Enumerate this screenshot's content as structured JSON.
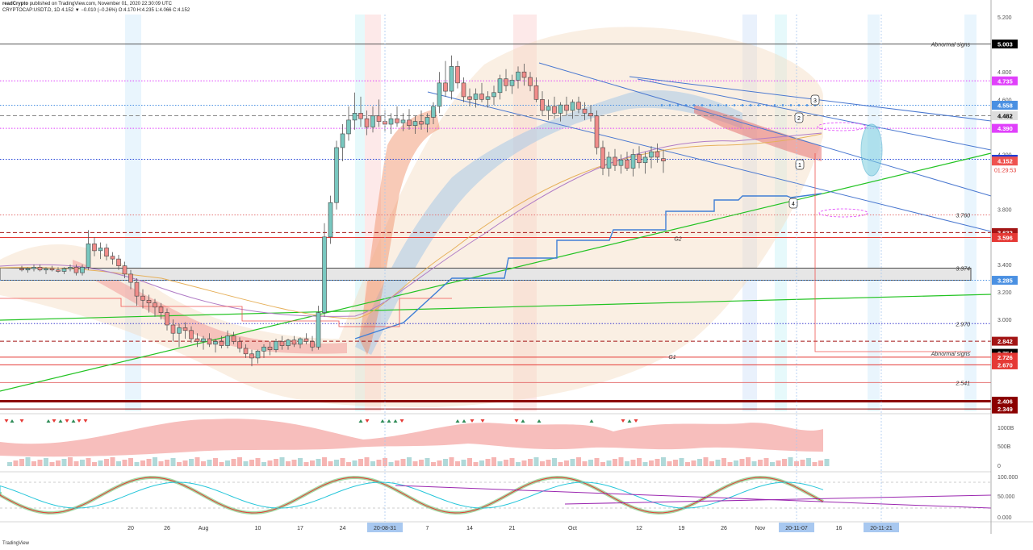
{
  "header": {
    "author": "readCrypto",
    "published": "published on TradingView.com, November 01, 2020 22:30:09 UTC",
    "symbol_line": "CRYPTOCAP:USDT.D, 1D  4.152 ▼ −0.010 (−0.26%)  O:4.170  H:4.235  L:4.066  C:4.152"
  },
  "branding": {
    "logo": "TradingView"
  },
  "chart_data": {
    "type": "candlestick",
    "symbol": "CRYPTOCAP:USDT.D",
    "interval": "1D",
    "last_bar": {
      "open": 4.17,
      "high": 4.235,
      "low": 4.066,
      "close": 4.152,
      "change": -0.01,
      "change_pct": -0.26
    },
    "countdown": "01:29:53",
    "ylim": [
      2.349,
      5.2
    ],
    "y_ticks": [
      5.2,
      4.8,
      4.6,
      4.2,
      3.8,
      3.4,
      3.2,
      3.0
    ],
    "x_tick_labels": [
      {
        "day": 20,
        "label": "20"
      },
      {
        "day": 26,
        "label": "26"
      },
      {
        "day": 32,
        "label": "Aug"
      },
      {
        "day": 41,
        "label": "10"
      },
      {
        "day": 48,
        "label": "17"
      },
      {
        "day": 55,
        "label": "24"
      },
      {
        "day": 62,
        "label": "20-08-31",
        "highlight": true
      },
      {
        "day": 69,
        "label": "7"
      },
      {
        "day": 76,
        "label": "14"
      },
      {
        "day": 83,
        "label": "21"
      },
      {
        "day": 93,
        "label": "Oct"
      },
      {
        "day": 104,
        "label": "12"
      },
      {
        "day": 111,
        "label": "19"
      },
      {
        "day": 118,
        "label": "26"
      },
      {
        "day": 124,
        "label": "Nov"
      },
      {
        "day": 130,
        "label": "20-11-07",
        "highlight": true
      },
      {
        "day": 137,
        "label": "16"
      },
      {
        "day": 144,
        "label": "20-11-21",
        "highlight": true
      }
    ],
    "candles": [
      [
        3.37,
        3.39,
        3.35,
        3.36
      ],
      [
        3.36,
        3.38,
        3.34,
        3.37
      ],
      [
        3.37,
        3.4,
        3.35,
        3.38
      ],
      [
        3.38,
        3.4,
        3.35,
        3.36
      ],
      [
        3.36,
        3.38,
        3.33,
        3.37
      ],
      [
        3.37,
        3.39,
        3.35,
        3.36
      ],
      [
        3.36,
        3.38,
        3.34,
        3.35
      ],
      [
        3.35,
        3.38,
        3.33,
        3.37
      ],
      [
        3.37,
        3.4,
        3.35,
        3.38
      ],
      [
        3.38,
        3.4,
        3.32,
        3.34
      ],
      [
        3.34,
        3.4,
        3.32,
        3.38
      ],
      [
        3.38,
        3.65,
        3.36,
        3.55
      ],
      [
        3.55,
        3.6,
        3.46,
        3.5
      ],
      [
        3.5,
        3.56,
        3.44,
        3.52
      ],
      [
        3.52,
        3.55,
        3.43,
        3.46
      ],
      [
        3.46,
        3.49,
        3.4,
        3.44
      ],
      [
        3.44,
        3.47,
        3.36,
        3.39
      ],
      [
        3.39,
        3.42,
        3.3,
        3.33
      ],
      [
        3.33,
        3.36,
        3.22,
        3.27
      ],
      [
        3.27,
        3.3,
        3.1,
        3.17
      ],
      [
        3.17,
        3.22,
        3.08,
        3.14
      ],
      [
        3.14,
        3.18,
        3.05,
        3.12
      ],
      [
        3.12,
        3.15,
        3.02,
        3.09
      ],
      [
        3.09,
        3.12,
        3.0,
        3.05
      ],
      [
        3.05,
        3.08,
        2.92,
        2.96
      ],
      [
        2.96,
        3.0,
        2.84,
        2.9
      ],
      [
        2.9,
        2.97,
        2.8,
        2.94
      ],
      [
        2.94,
        2.98,
        2.86,
        2.92
      ],
      [
        2.92,
        2.95,
        2.83,
        2.86
      ],
      [
        2.86,
        2.9,
        2.8,
        2.84
      ],
      [
        2.84,
        2.88,
        2.78,
        2.86
      ],
      [
        2.86,
        2.9,
        2.8,
        2.82
      ],
      [
        2.82,
        2.86,
        2.76,
        2.84
      ],
      [
        2.84,
        2.88,
        2.79,
        2.81
      ],
      [
        2.81,
        2.92,
        2.79,
        2.88
      ],
      [
        2.88,
        2.91,
        2.82,
        2.84
      ],
      [
        2.84,
        2.87,
        2.76,
        2.79
      ],
      [
        2.79,
        2.82,
        2.72,
        2.75
      ],
      [
        2.75,
        2.78,
        2.66,
        2.72
      ],
      [
        2.72,
        2.78,
        2.68,
        2.77
      ],
      [
        2.77,
        2.82,
        2.72,
        2.8
      ],
      [
        2.8,
        2.84,
        2.74,
        2.78
      ],
      [
        2.78,
        2.86,
        2.76,
        2.84
      ],
      [
        2.84,
        2.88,
        2.78,
        2.81
      ],
      [
        2.81,
        2.86,
        2.78,
        2.85
      ],
      [
        2.85,
        2.88,
        2.8,
        2.82
      ],
      [
        2.82,
        2.87,
        2.79,
        2.86
      ],
      [
        2.86,
        2.9,
        2.82,
        2.84
      ],
      [
        2.84,
        2.88,
        2.77,
        2.8
      ],
      [
        2.8,
        3.1,
        2.78,
        3.05
      ],
      [
        3.05,
        3.7,
        3.02,
        3.6
      ],
      [
        3.6,
        3.9,
        3.55,
        3.85
      ],
      [
        3.85,
        4.3,
        3.8,
        4.25
      ],
      [
        4.25,
        4.42,
        4.15,
        4.35
      ],
      [
        4.35,
        4.55,
        4.3,
        4.45
      ],
      [
        4.45,
        4.65,
        4.38,
        4.5
      ],
      [
        4.5,
        4.62,
        4.4,
        4.46
      ],
      [
        4.46,
        4.52,
        4.34,
        4.4
      ],
      [
        4.4,
        4.55,
        4.36,
        4.48
      ],
      [
        4.48,
        4.6,
        4.4,
        4.44
      ],
      [
        4.44,
        4.52,
        4.36,
        4.42
      ],
      [
        4.42,
        4.5,
        4.35,
        4.46
      ],
      [
        4.46,
        4.55,
        4.4,
        4.43
      ],
      [
        4.43,
        4.5,
        4.37,
        4.45
      ],
      [
        4.45,
        4.53,
        4.38,
        4.41
      ],
      [
        4.41,
        4.48,
        4.35,
        4.44
      ],
      [
        4.44,
        4.52,
        4.38,
        4.42
      ],
      [
        4.42,
        4.5,
        4.36,
        4.47
      ],
      [
        4.47,
        4.58,
        4.42,
        4.55
      ],
      [
        4.55,
        4.8,
        4.5,
        4.72
      ],
      [
        4.72,
        4.88,
        4.62,
        4.66
      ],
      [
        4.66,
        4.92,
        4.6,
        4.84
      ],
      [
        4.84,
        4.88,
        4.68,
        4.72
      ],
      [
        4.72,
        4.76,
        4.58,
        4.62
      ],
      [
        4.62,
        4.68,
        4.55,
        4.6
      ],
      [
        4.6,
        4.68,
        4.54,
        4.64
      ],
      [
        4.64,
        4.72,
        4.58,
        4.6
      ],
      [
        4.6,
        4.66,
        4.54,
        4.62
      ],
      [
        4.62,
        4.7,
        4.56,
        4.65
      ],
      [
        4.65,
        4.78,
        4.6,
        4.75
      ],
      [
        4.75,
        4.82,
        4.66,
        4.7
      ],
      [
        4.7,
        4.78,
        4.64,
        4.74
      ],
      [
        4.74,
        4.84,
        4.68,
        4.8
      ],
      [
        4.8,
        4.86,
        4.7,
        4.76
      ],
      [
        4.76,
        4.8,
        4.66,
        4.7
      ],
      [
        4.7,
        4.76,
        4.58,
        4.6
      ],
      [
        4.6,
        4.66,
        4.48,
        4.52
      ],
      [
        4.52,
        4.6,
        4.45,
        4.55
      ],
      [
        4.55,
        4.62,
        4.46,
        4.5
      ],
      [
        4.5,
        4.58,
        4.44,
        4.56
      ],
      [
        4.56,
        4.62,
        4.48,
        4.52
      ],
      [
        4.52,
        4.6,
        4.46,
        4.58
      ],
      [
        4.58,
        4.62,
        4.5,
        4.53
      ],
      [
        4.53,
        4.58,
        4.45,
        4.5
      ],
      [
        4.5,
        4.56,
        4.44,
        4.48
      ],
      [
        4.48,
        4.52,
        4.2,
        4.25
      ],
      [
        4.25,
        4.3,
        4.05,
        4.1
      ],
      [
        4.1,
        4.22,
        4.04,
        4.18
      ],
      [
        4.18,
        4.24,
        4.08,
        4.12
      ],
      [
        4.12,
        4.2,
        4.06,
        4.16
      ],
      [
        4.16,
        4.22,
        4.08,
        4.1
      ],
      [
        4.1,
        4.24,
        4.04,
        4.2
      ],
      [
        4.2,
        4.26,
        4.1,
        4.14
      ],
      [
        4.14,
        4.22,
        4.06,
        4.18
      ],
      [
        4.18,
        4.26,
        4.1,
        4.22
      ],
      [
        4.22,
        4.28,
        4.14,
        4.18
      ],
      [
        4.17,
        4.235,
        4.066,
        4.152
      ]
    ],
    "first_candle_day": 2,
    "price_labels": [
      {
        "value": 5.003,
        "label": "5.003",
        "bg": "#000000",
        "fg": "#ffffff"
      },
      {
        "value": 4.735,
        "label": "4.735",
        "bg": "#e040fb",
        "fg": "#ffffff"
      },
      {
        "value": 4.558,
        "label": "4.558",
        "bg": "#4a90e2",
        "fg": "#ffffff"
      },
      {
        "value": 4.482,
        "label": "4.482",
        "bg": "#dddddd",
        "fg": "#000000"
      },
      {
        "value": 4.39,
        "label": "4.390",
        "bg": "#e040fb",
        "fg": "#ffffff"
      },
      {
        "value": 4.165,
        "label": "4.165",
        "bg": "#1e3fd8",
        "fg": "#ffffff"
      },
      {
        "value": 4.152,
        "label": "4.152",
        "bg": "#ef5350",
        "fg": "#ffffff"
      },
      {
        "value": 3.632,
        "label": "3.632",
        "bg": "#a31515",
        "fg": "#ffffff"
      },
      {
        "value": 3.596,
        "label": "3.596",
        "bg": "#e53935",
        "fg": "#ffffff"
      },
      {
        "value": 3.285,
        "label": "3.285",
        "bg": "#4a90e2",
        "fg": "#ffffff"
      },
      {
        "value": 2.842,
        "label": "2.842",
        "bg": "#a31515",
        "fg": "#ffffff"
      },
      {
        "value": 2.754,
        "label": "2.754",
        "bg": "#000000",
        "fg": "#ffffff"
      },
      {
        "value": 2.726,
        "label": "2.726",
        "bg": "#e53935",
        "fg": "#ffffff"
      },
      {
        "value": 2.67,
        "label": "2.670",
        "bg": "#e53935",
        "fg": "#ffffff"
      },
      {
        "value": 2.406,
        "label": "2.406",
        "bg": "#8b0000",
        "fg": "#ffffff"
      },
      {
        "value": 2.349,
        "label": "2.349",
        "bg": "#8b0000",
        "fg": "#ffffff"
      }
    ],
    "level_lines": [
      {
        "value": 5.003,
        "color": "#555555",
        "style": "solid"
      },
      {
        "value": 4.735,
        "color": "#e040fb",
        "style": "dotted"
      },
      {
        "value": 4.558,
        "color": "#4a90e2",
        "style": "dotted"
      },
      {
        "value": 4.482,
        "color": "#888888",
        "style": "dashed"
      },
      {
        "value": 4.39,
        "color": "#e040fb",
        "style": "dotted"
      },
      {
        "value": 4.165,
        "color": "#1e3fd8",
        "style": "dotted"
      },
      {
        "value": 3.76,
        "color": "#e57373",
        "style": "dotted"
      },
      {
        "value": 3.632,
        "color": "#a31515",
        "style": "dashed"
      },
      {
        "value": 3.596,
        "color": "#e53935",
        "style": "solid"
      },
      {
        "value": 3.285,
        "color": "#4a90e2",
        "style": "dotted"
      },
      {
        "value": 2.97,
        "color": "#3f3fd0",
        "style": "dotted"
      },
      {
        "value": 2.842,
        "color": "#a31515",
        "style": "dashed"
      },
      {
        "value": 2.726,
        "color": "#e53935",
        "style": "solid"
      },
      {
        "value": 2.67,
        "color": "#e53935",
        "style": "solid"
      },
      {
        "value": 2.541,
        "color": "#e57373",
        "style": "solid"
      },
      {
        "value": 2.406,
        "color": "#8b0000",
        "style": "thick"
      },
      {
        "value": 2.349,
        "color": "#8b0000",
        "style": "solid"
      }
    ],
    "annotations": [
      {
        "text": "Abnormal signs",
        "value": 5.003
      },
      {
        "text": "Abnormal signs",
        "value": 2.754
      },
      {
        "text": "3.760",
        "value": 3.76
      },
      {
        "text": "3.374",
        "value": 3.374
      },
      {
        "text": "2.970",
        "value": 2.97
      },
      {
        "text": "2.541",
        "value": 2.541
      },
      {
        "text": "G2",
        "value": 3.59
      },
      {
        "text": "G1",
        "value": 2.73
      }
    ],
    "callouts": [
      "1",
      "2",
      "3",
      "4"
    ],
    "highlight_box": {
      "from": 3.285,
      "to": 3.374
    },
    "volume_axis": [
      "1000B",
      "500B",
      "0"
    ],
    "oscillator_axis": [
      "100.000",
      "50.000",
      "0.000"
    ],
    "colors": {
      "up": "#26a69a",
      "down": "#ef5350"
    }
  }
}
